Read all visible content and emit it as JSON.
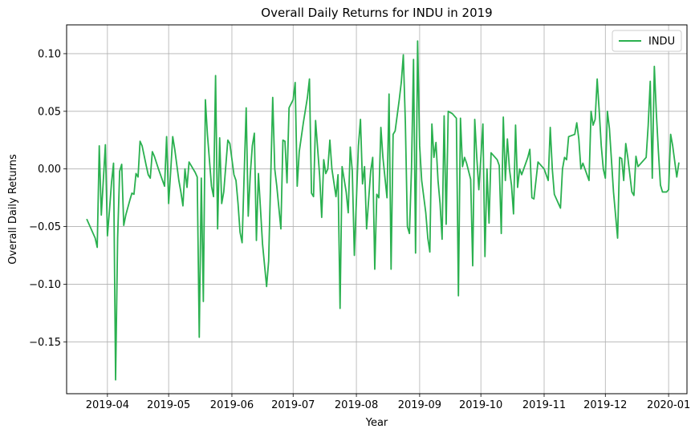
{
  "chart_data": {
    "type": "line",
    "title": "Overall Daily Returns for INDU in 2019",
    "xlabel": "Year",
    "ylabel": "Overall Daily Returns",
    "xlim": [
      "2019-03-12",
      "2020-01-10"
    ],
    "ylim": [
      -0.195,
      0.125
    ],
    "grid": true,
    "legend_position": "top-right",
    "x_ticks": [
      "2019-04",
      "2019-05",
      "2019-06",
      "2019-07",
      "2019-08",
      "2019-09",
      "2019-10",
      "2019-11",
      "2019-12",
      "2020-01"
    ],
    "y_ticks": [
      0.1,
      0.05,
      0.0,
      -0.05,
      -0.1,
      -0.15
    ],
    "y_tick_labels": [
      "0.10",
      "0.05",
      "0.00",
      "−0.05",
      "−0.10",
      "−0.15"
    ],
    "series": [
      {
        "name": "INDU",
        "color": "#2ab04f",
        "points": [
          [
            "2019-03-22",
            -0.044
          ],
          [
            "2019-03-26",
            -0.06
          ],
          [
            "2019-03-27",
            -0.068
          ],
          [
            "2019-03-28",
            0.02
          ],
          [
            "2019-03-29",
            -0.04
          ],
          [
            "2019-03-31",
            0.021
          ],
          [
            "2019-04-01",
            -0.058
          ],
          [
            "2019-04-02",
            -0.036
          ],
          [
            "2019-04-03",
            -0.012
          ],
          [
            "2019-04-04",
            0.005
          ],
          [
            "2019-04-05",
            -0.183
          ],
          [
            "2019-04-06",
            -0.06
          ],
          [
            "2019-04-07",
            -0.002
          ],
          [
            "2019-04-08",
            0.004
          ],
          [
            "2019-04-09",
            -0.049
          ],
          [
            "2019-04-10",
            -0.04
          ],
          [
            "2019-04-12",
            -0.027
          ],
          [
            "2019-04-13",
            -0.021
          ],
          [
            "2019-04-14",
            -0.022
          ],
          [
            "2019-04-15",
            -0.004
          ],
          [
            "2019-04-16",
            -0.007
          ],
          [
            "2019-04-17",
            0.024
          ],
          [
            "2019-04-18",
            0.02
          ],
          [
            "2019-04-20",
            0.003
          ],
          [
            "2019-04-21",
            -0.005
          ],
          [
            "2019-04-22",
            -0.008
          ],
          [
            "2019-04-23",
            0.015
          ],
          [
            "2019-04-24",
            0.011
          ],
          [
            "2019-04-26",
            0.0
          ],
          [
            "2019-04-28",
            -0.01
          ],
          [
            "2019-04-29",
            -0.015
          ],
          [
            "2019-04-30",
            0.028
          ],
          [
            "2019-05-01",
            -0.03
          ],
          [
            "2019-05-02",
            -0.002
          ],
          [
            "2019-05-03",
            0.028
          ],
          [
            "2019-05-04",
            0.017
          ],
          [
            "2019-05-06",
            -0.01
          ],
          [
            "2019-05-07",
            -0.02
          ],
          [
            "2019-05-08",
            -0.032
          ],
          [
            "2019-05-09",
            0.0
          ],
          [
            "2019-05-10",
            -0.016
          ],
          [
            "2019-05-11",
            0.006
          ],
          [
            "2019-05-14",
            -0.003
          ],
          [
            "2019-05-15",
            -0.007
          ],
          [
            "2019-05-16",
            -0.146
          ],
          [
            "2019-05-17",
            -0.008
          ],
          [
            "2019-05-18",
            -0.115
          ],
          [
            "2019-05-19",
            0.06
          ],
          [
            "2019-05-20",
            0.03
          ],
          [
            "2019-05-22",
            -0.015
          ],
          [
            "2019-05-23",
            -0.024
          ],
          [
            "2019-05-24",
            0.081
          ],
          [
            "2019-05-25",
            -0.052
          ],
          [
            "2019-05-26",
            0.027
          ],
          [
            "2019-05-27",
            -0.03
          ],
          [
            "2019-05-28",
            -0.02
          ],
          [
            "2019-05-30",
            0.025
          ],
          [
            "2019-05-31",
            0.022
          ],
          [
            "2019-06-02",
            -0.005
          ],
          [
            "2019-06-03",
            -0.01
          ],
          [
            "2019-06-04",
            -0.03
          ],
          [
            "2019-06-05",
            -0.055
          ],
          [
            "2019-06-06",
            -0.064
          ],
          [
            "2019-06-08",
            0.053
          ],
          [
            "2019-06-09",
            -0.041
          ],
          [
            "2019-06-10",
            -0.005
          ],
          [
            "2019-06-11",
            0.02
          ],
          [
            "2019-06-12",
            0.031
          ],
          [
            "2019-06-13",
            -0.062
          ],
          [
            "2019-06-14",
            -0.004
          ],
          [
            "2019-06-16",
            -0.065
          ],
          [
            "2019-06-18",
            -0.102
          ],
          [
            "2019-06-19",
            -0.08
          ],
          [
            "2019-06-21",
            0.062
          ],
          [
            "2019-06-22",
            0.0
          ],
          [
            "2019-06-23",
            -0.015
          ],
          [
            "2019-06-25",
            -0.052
          ],
          [
            "2019-06-26",
            0.025
          ],
          [
            "2019-06-27",
            0.024
          ],
          [
            "2019-06-28",
            -0.012
          ],
          [
            "2019-06-29",
            0.053
          ],
          [
            "2019-07-01",
            0.06
          ],
          [
            "2019-07-02",
            0.075
          ],
          [
            "2019-07-03",
            -0.015
          ],
          [
            "2019-07-04",
            0.015
          ],
          [
            "2019-07-06",
            0.04
          ],
          [
            "2019-07-08",
            0.062
          ],
          [
            "2019-07-09",
            0.078
          ],
          [
            "2019-07-10",
            -0.021
          ],
          [
            "2019-07-11",
            -0.024
          ],
          [
            "2019-07-12",
            0.042
          ],
          [
            "2019-07-14",
            -0.006
          ],
          [
            "2019-07-15",
            -0.042
          ],
          [
            "2019-07-16",
            0.008
          ],
          [
            "2019-07-17",
            -0.004
          ],
          [
            "2019-07-18",
            0.0
          ],
          [
            "2019-07-19",
            0.025
          ],
          [
            "2019-07-20",
            0.0
          ],
          [
            "2019-07-22",
            -0.024
          ],
          [
            "2019-07-23",
            -0.005
          ],
          [
            "2019-07-24",
            -0.121
          ],
          [
            "2019-07-25",
            0.002
          ],
          [
            "2019-07-27",
            -0.02
          ],
          [
            "2019-07-28",
            -0.038
          ],
          [
            "2019-07-29",
            0.019
          ],
          [
            "2019-07-30",
            -0.002
          ],
          [
            "2019-07-31",
            -0.075
          ],
          [
            "2019-08-02",
            0.02
          ],
          [
            "2019-08-03",
            0.043
          ],
          [
            "2019-08-04",
            -0.013
          ],
          [
            "2019-08-05",
            0.002
          ],
          [
            "2019-08-06",
            -0.052
          ],
          [
            "2019-08-08",
            -0.002
          ],
          [
            "2019-08-09",
            0.01
          ],
          [
            "2019-08-10",
            -0.087
          ],
          [
            "2019-08-11",
            -0.022
          ],
          [
            "2019-08-12",
            -0.025
          ],
          [
            "2019-08-13",
            0.036
          ],
          [
            "2019-08-14",
            0.01
          ],
          [
            "2019-08-16",
            -0.025
          ],
          [
            "2019-08-17",
            0.065
          ],
          [
            "2019-08-18",
            -0.087
          ],
          [
            "2019-08-19",
            0.03
          ],
          [
            "2019-08-20",
            0.033
          ],
          [
            "2019-08-22",
            0.06
          ],
          [
            "2019-08-23",
            0.075
          ],
          [
            "2019-08-24",
            0.099
          ],
          [
            "2019-08-25",
            0.04
          ],
          [
            "2019-08-26",
            -0.05
          ],
          [
            "2019-08-27",
            -0.056
          ],
          [
            "2019-08-28",
            0.0
          ],
          [
            "2019-08-29",
            0.095
          ],
          [
            "2019-08-30",
            -0.073
          ],
          [
            "2019-08-31",
            0.111
          ],
          [
            "2019-09-01",
            0.02
          ],
          [
            "2019-09-02",
            -0.01
          ],
          [
            "2019-09-04",
            -0.038
          ],
          [
            "2019-09-05",
            -0.06
          ],
          [
            "2019-09-06",
            -0.072
          ],
          [
            "2019-09-07",
            0.039
          ],
          [
            "2019-09-08",
            0.01
          ],
          [
            "2019-09-09",
            0.023
          ],
          [
            "2019-09-10",
            -0.01
          ],
          [
            "2019-09-11",
            -0.03
          ],
          [
            "2019-09-12",
            -0.061
          ],
          [
            "2019-09-13",
            0.046
          ],
          [
            "2019-09-14",
            -0.048
          ],
          [
            "2019-09-15",
            0.05
          ],
          [
            "2019-09-17",
            0.048
          ],
          [
            "2019-09-19",
            0.044
          ],
          [
            "2019-09-20",
            -0.11
          ],
          [
            "2019-09-21",
            0.044
          ],
          [
            "2019-09-22",
            0.002
          ],
          [
            "2019-09-23",
            0.01
          ],
          [
            "2019-09-24",
            0.005
          ],
          [
            "2019-09-26",
            -0.009
          ],
          [
            "2019-09-27",
            -0.084
          ],
          [
            "2019-09-28",
            0.043
          ],
          [
            "2019-09-29",
            0.01
          ],
          [
            "2019-09-30",
            -0.018
          ],
          [
            "2019-10-01",
            0.01
          ],
          [
            "2019-10-02",
            0.039
          ],
          [
            "2019-10-03",
            -0.076
          ],
          [
            "2019-10-04",
            0.0
          ],
          [
            "2019-10-05",
            -0.047
          ],
          [
            "2019-10-06",
            0.014
          ],
          [
            "2019-10-08",
            0.01
          ],
          [
            "2019-10-09",
            0.008
          ],
          [
            "2019-10-10",
            0.003
          ],
          [
            "2019-10-11",
            -0.056
          ],
          [
            "2019-10-12",
            0.045
          ],
          [
            "2019-10-13",
            -0.01
          ],
          [
            "2019-10-14",
            0.026
          ],
          [
            "2019-10-15",
            0.0
          ],
          [
            "2019-10-16",
            -0.014
          ],
          [
            "2019-10-17",
            -0.039
          ],
          [
            "2019-10-18",
            0.038
          ],
          [
            "2019-10-19",
            -0.016
          ],
          [
            "2019-10-20",
            0.0
          ],
          [
            "2019-10-21",
            -0.005
          ],
          [
            "2019-10-22",
            0.0
          ],
          [
            "2019-10-24",
            0.01
          ],
          [
            "2019-10-25",
            0.017
          ],
          [
            "2019-10-26",
            -0.025
          ],
          [
            "2019-10-27",
            -0.026
          ],
          [
            "2019-10-29",
            0.006
          ],
          [
            "2019-10-31",
            0.002
          ],
          [
            "2019-11-01",
            0.0
          ],
          [
            "2019-11-02",
            -0.005
          ],
          [
            "2019-11-03",
            -0.01
          ],
          [
            "2019-11-04",
            0.036
          ],
          [
            "2019-11-05",
            0.0
          ],
          [
            "2019-11-06",
            -0.022
          ],
          [
            "2019-11-09",
            -0.034
          ],
          [
            "2019-11-10",
            0.0
          ],
          [
            "2019-11-11",
            0.01
          ],
          [
            "2019-11-12",
            0.008
          ],
          [
            "2019-11-13",
            0.028
          ],
          [
            "2019-11-16",
            0.03
          ],
          [
            "2019-11-17",
            0.04
          ],
          [
            "2019-11-18",
            0.026
          ],
          [
            "2019-11-19",
            0.0
          ],
          [
            "2019-11-20",
            0.005
          ],
          [
            "2019-11-21",
            0.0
          ],
          [
            "2019-11-23",
            -0.01
          ],
          [
            "2019-11-24",
            0.05
          ],
          [
            "2019-11-25",
            0.038
          ],
          [
            "2019-11-26",
            0.043
          ],
          [
            "2019-11-27",
            0.078
          ],
          [
            "2019-11-28",
            0.05
          ],
          [
            "2019-11-29",
            0.02
          ],
          [
            "2019-11-30",
            0.0
          ],
          [
            "2019-12-01",
            -0.008
          ],
          [
            "2019-12-02",
            0.05
          ],
          [
            "2019-12-03",
            0.035
          ],
          [
            "2019-12-05",
            -0.02
          ],
          [
            "2019-12-07",
            -0.06
          ],
          [
            "2019-12-08",
            0.01
          ],
          [
            "2019-12-09",
            0.009
          ],
          [
            "2019-12-10",
            -0.01
          ],
          [
            "2019-12-11",
            0.022
          ],
          [
            "2019-12-12",
            0.01
          ],
          [
            "2019-12-14",
            -0.02
          ],
          [
            "2019-12-15",
            -0.023
          ],
          [
            "2019-12-16",
            0.011
          ],
          [
            "2019-12-17",
            0.002
          ],
          [
            "2019-12-19",
            0.006
          ],
          [
            "2019-12-21",
            0.01
          ],
          [
            "2019-12-22",
            0.038
          ],
          [
            "2019-12-23",
            0.076
          ],
          [
            "2019-12-24",
            -0.008
          ],
          [
            "2019-12-25",
            0.089
          ],
          [
            "2019-12-26",
            0.048
          ],
          [
            "2019-12-27",
            0.015
          ],
          [
            "2019-12-28",
            -0.014
          ],
          [
            "2019-12-29",
            -0.02
          ],
          [
            "2019-12-31",
            -0.02
          ],
          [
            "2020-01-01",
            -0.018
          ],
          [
            "2020-01-02",
            0.03
          ],
          [
            "2020-01-03",
            0.02
          ],
          [
            "2020-01-05",
            -0.007
          ],
          [
            "2020-01-06",
            0.005
          ]
        ]
      }
    ]
  }
}
